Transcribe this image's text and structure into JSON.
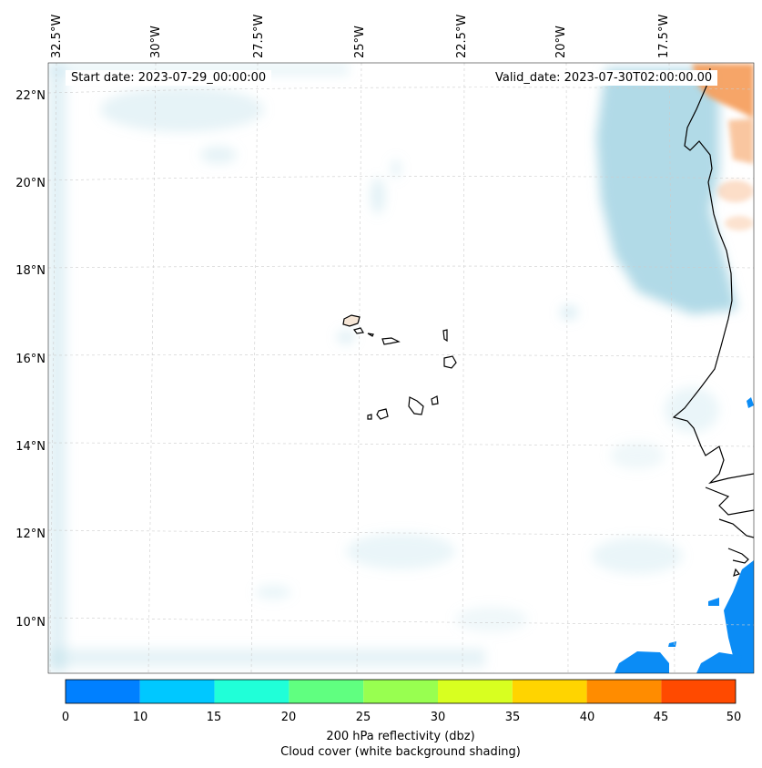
{
  "map": {
    "start_date": "Start date: 2023-07-29_00:00:00",
    "valid_date": "Valid_date: 2023-07-30T02:00:00.00",
    "lon_labels": [
      "32.5°W",
      "30°W",
      "27.5°W",
      "25°W",
      "22.5°W",
      "20°W",
      "17.5°W"
    ],
    "lat_labels": [
      "22°N",
      "20°N",
      "18°N",
      "16°N",
      "14°N",
      "12°N",
      "10°N"
    ]
  },
  "colorbar": {
    "ticks": [
      "0",
      "10",
      "15",
      "20",
      "25",
      "30",
      "35",
      "40",
      "45",
      "50"
    ],
    "colors": [
      "#0080ff",
      "#00c8ff",
      "#20ffd8",
      "#60ff80",
      "#98ff50",
      "#d8ff20",
      "#ffd400",
      "#ff8c00",
      "#ff4a00"
    ],
    "label": "200 hPa reflectivity (dbz)",
    "sublabel": "Cloud cover (white background shading)"
  }
}
